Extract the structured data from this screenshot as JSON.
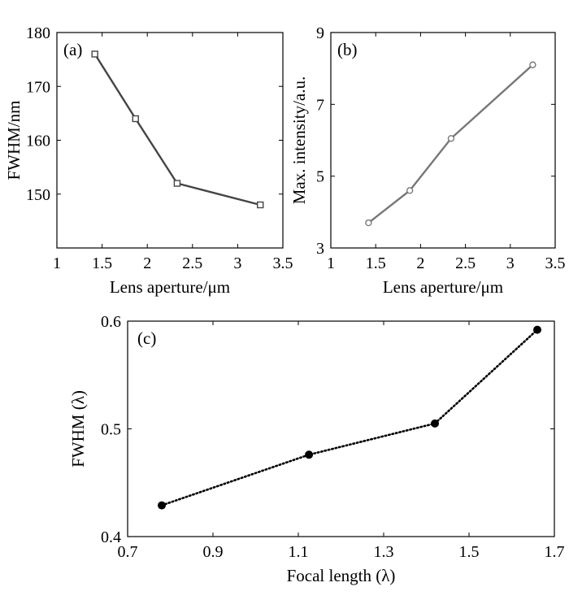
{
  "chart_data": [
    {
      "type": "line",
      "panel_label": "(a)",
      "xlabel": "Lens aperture/μm",
      "ylabel": "FWHM/nm",
      "xlim": [
        1,
        3.5
      ],
      "ylim": [
        140,
        180
      ],
      "xticks": [
        "1",
        "1.5",
        "2",
        "2.5",
        "3",
        "3.5"
      ],
      "yticks": [
        "150",
        "160",
        "170",
        "180"
      ],
      "grid": false,
      "marker": "square",
      "line_style": "solid",
      "color": "#444444",
      "series": [
        {
          "x": [
            1.42,
            1.87,
            2.33,
            3.25
          ],
          "y": [
            176,
            164,
            152,
            148
          ]
        }
      ]
    },
    {
      "type": "line",
      "panel_label": "(b)",
      "xlabel": "Lens aperture/μm",
      "ylabel": "Max. intensity/a.u.",
      "xlim": [
        1,
        3.5
      ],
      "ylim": [
        3,
        9
      ],
      "xticks": [
        "1",
        "1.5",
        "2",
        "2.5",
        "3",
        "3.5"
      ],
      "yticks": [
        "3",
        "5",
        "7",
        "9"
      ],
      "grid": false,
      "marker": "circle-open",
      "line_style": "solid",
      "color": "#777777",
      "series": [
        {
          "x": [
            1.42,
            1.88,
            2.34,
            3.25
          ],
          "y": [
            3.7,
            4.6,
            6.05,
            8.1
          ]
        }
      ]
    },
    {
      "type": "line",
      "panel_label": "(c)",
      "xlabel": "Focal length (λ)",
      "ylabel": "FWHM (λ)",
      "xlim": [
        0.7,
        1.7
      ],
      "ylim": [
        0.4,
        0.6
      ],
      "xticks": [
        "0.7",
        "0.9",
        "1.1",
        "1.3",
        "1.5",
        "1.7"
      ],
      "yticks": [
        "0.4",
        "0.5",
        "0.6"
      ],
      "grid": false,
      "marker": "circle-filled",
      "line_style": "dotted",
      "color": "#000000",
      "series": [
        {
          "x": [
            0.78,
            1.125,
            1.42,
            1.66
          ],
          "y": [
            0.429,
            0.476,
            0.505,
            0.592
          ]
        }
      ]
    }
  ]
}
